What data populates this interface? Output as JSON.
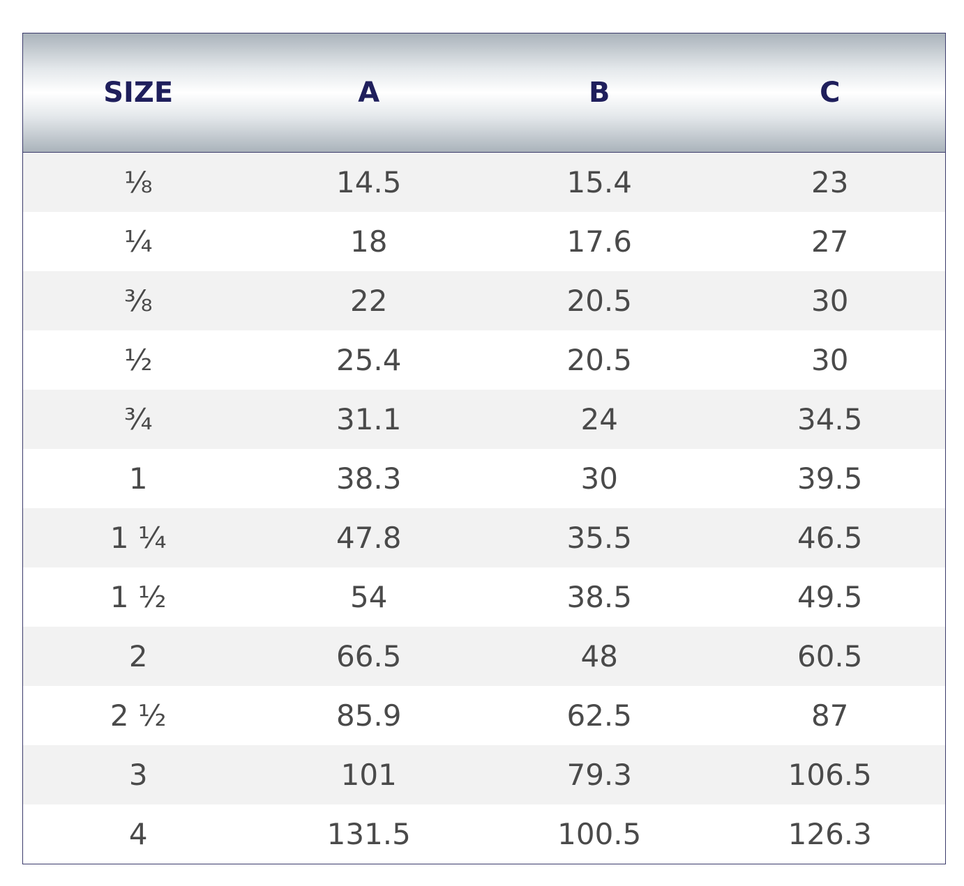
{
  "table": {
    "header": [
      "SIZE",
      "A",
      "B",
      "C"
    ],
    "rows": [
      [
        "⅛",
        "14.5",
        "15.4",
        "23"
      ],
      [
        "¼",
        "18",
        "17.6",
        "27"
      ],
      [
        "⅜",
        "22",
        "20.5",
        "30"
      ],
      [
        "½",
        "25.4",
        "20.5",
        "30"
      ],
      [
        "¾",
        "31.1",
        "24",
        "34.5"
      ],
      [
        "1",
        "38.3",
        "30",
        "39.5"
      ],
      [
        "1 ¼",
        "47.8",
        "35.5",
        "46.5"
      ],
      [
        "1 ½",
        "54",
        "38.5",
        "49.5"
      ],
      [
        "2",
        "66.5",
        "48",
        "60.5"
      ],
      [
        "2 ½",
        "85.9",
        "62.5",
        "87"
      ],
      [
        "3",
        "101",
        "79.3",
        "106.5"
      ],
      [
        "4",
        "131.5",
        "100.5",
        "126.3"
      ]
    ]
  }
}
